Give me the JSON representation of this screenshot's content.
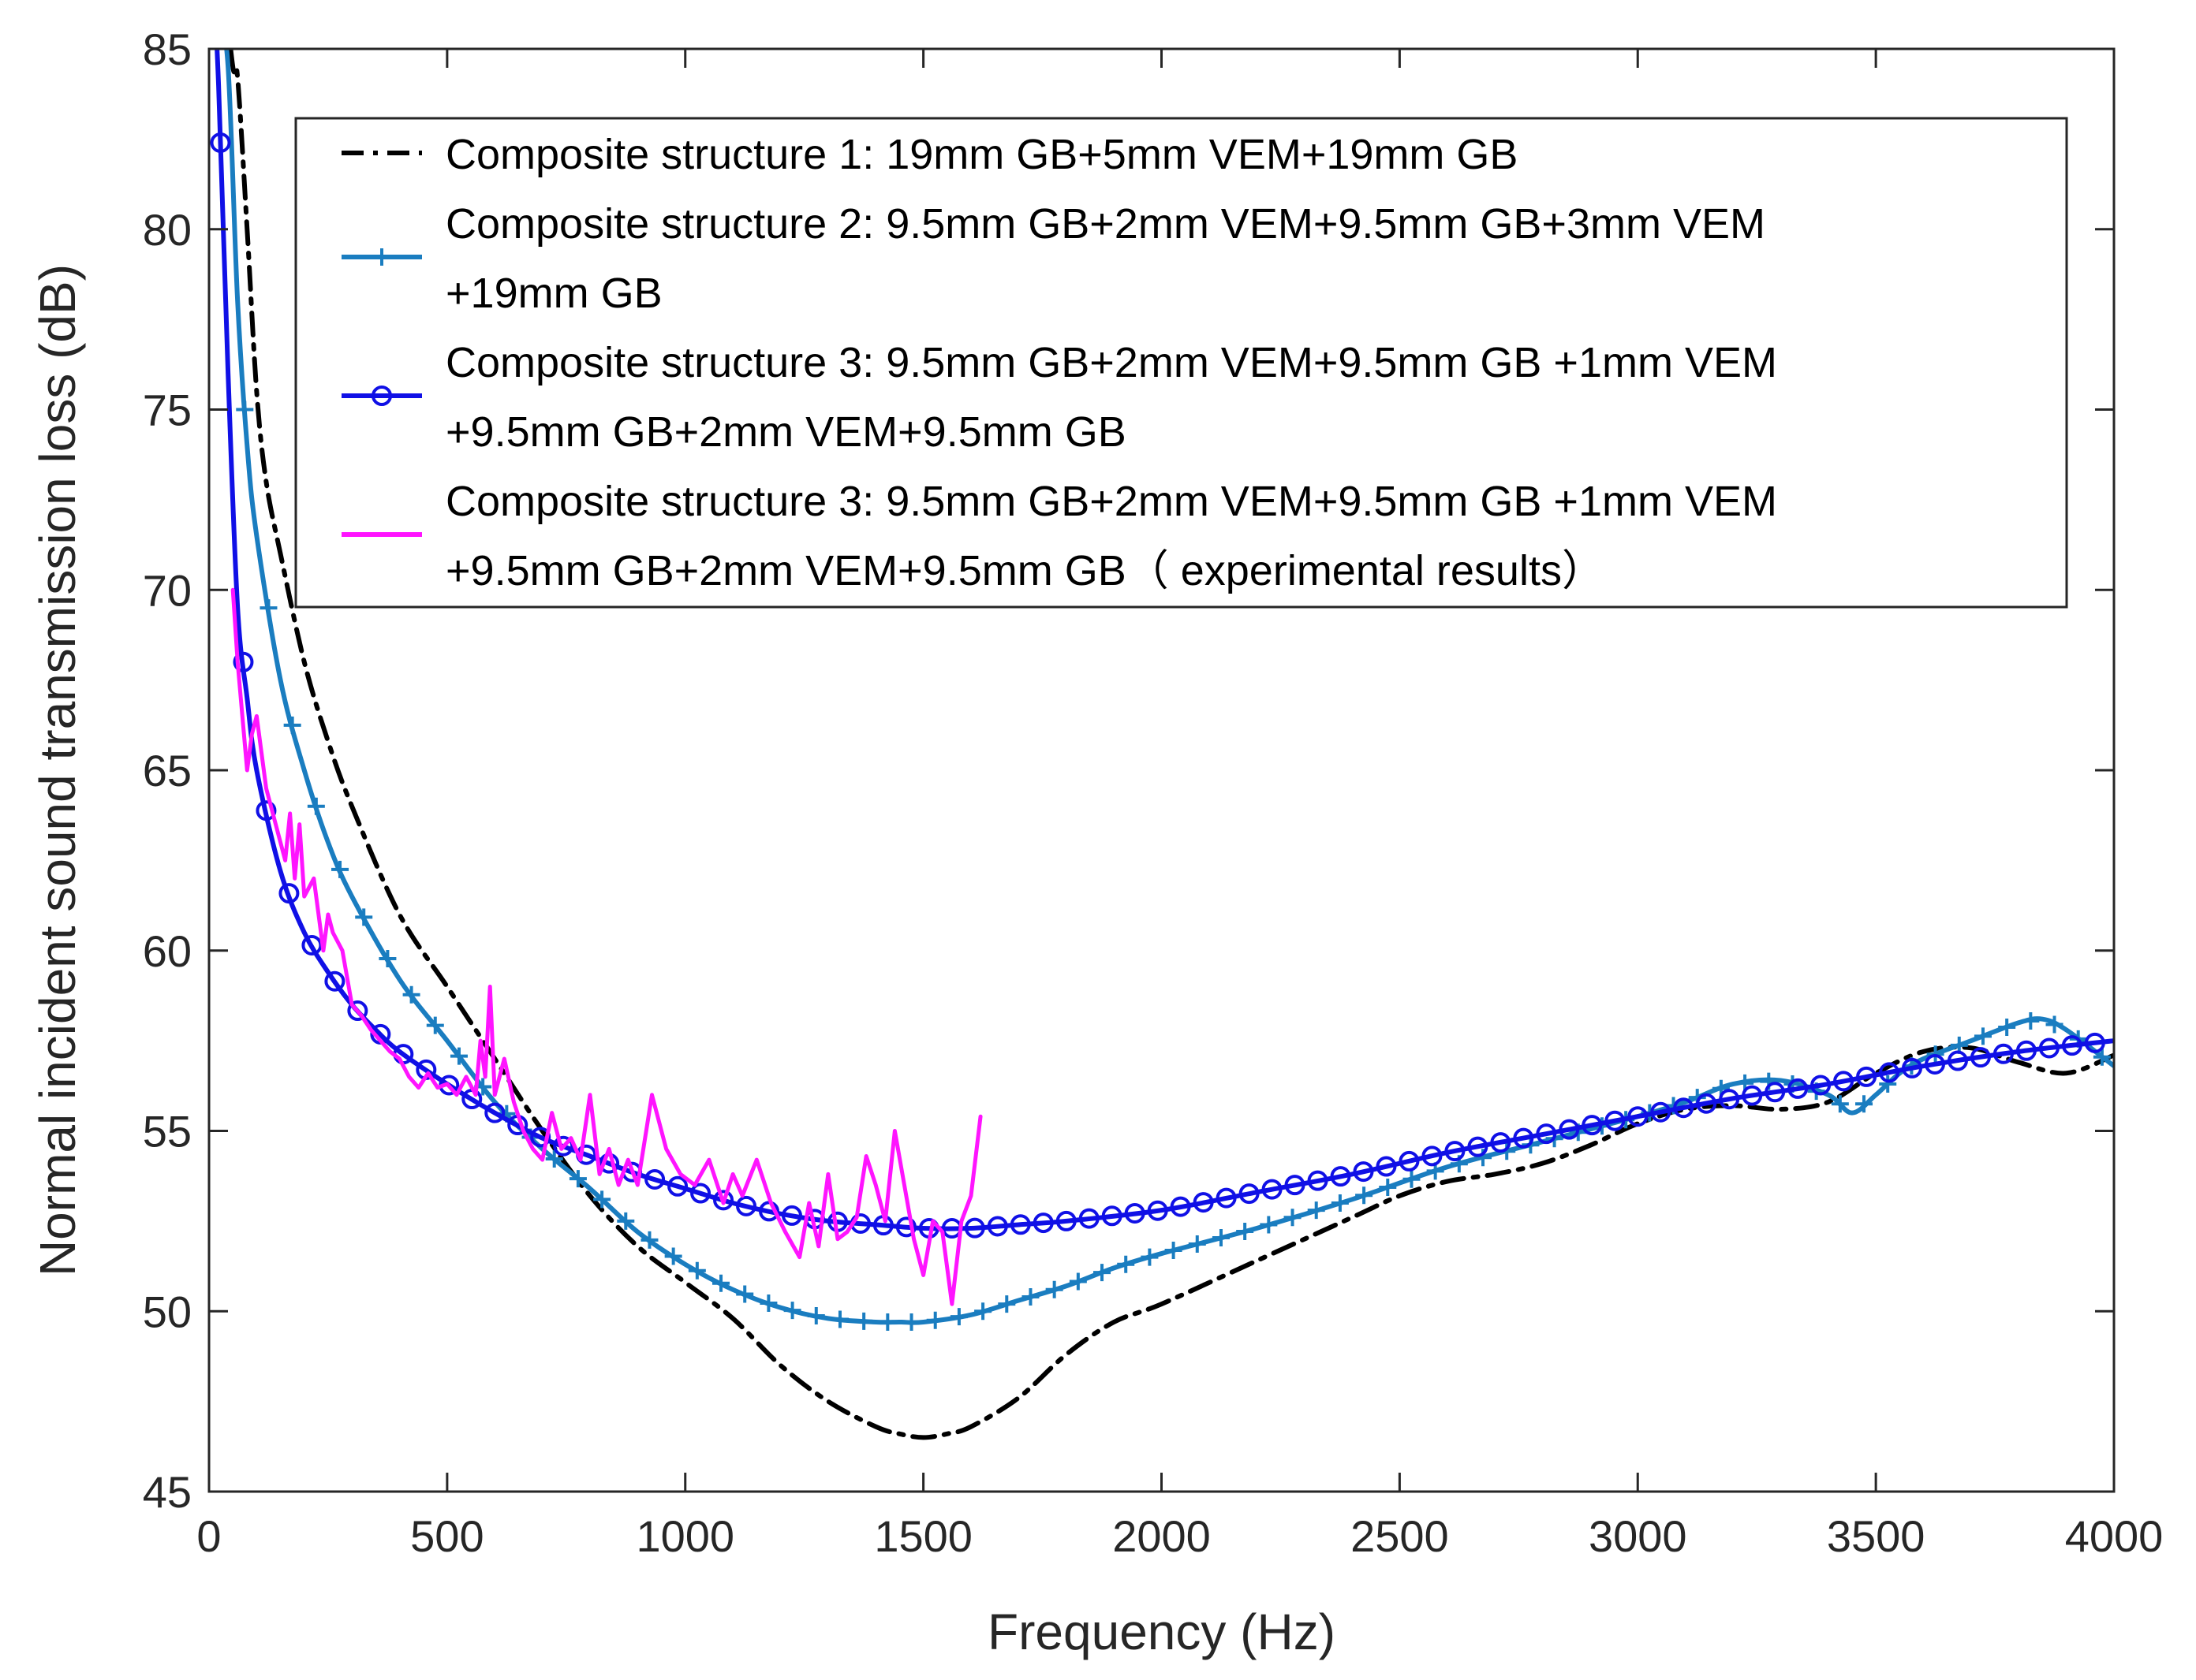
{
  "chart_data": {
    "type": "line",
    "title": "",
    "xlabel": "Frequency (Hz)",
    "ylabel": "Normal incident sound transmission loss (dB)",
    "xlim": [
      0,
      4000
    ],
    "ylim": [
      45,
      85
    ],
    "xticks": [
      0,
      500,
      1000,
      1500,
      2000,
      2500,
      3000,
      3500,
      4000
    ],
    "yticks": [
      45,
      50,
      55,
      60,
      65,
      70,
      75,
      80,
      85
    ],
    "grid": false,
    "legend_position": "top-right",
    "series": [
      {
        "name": "Composite structure 1: 19mm GB+5mm VEM+19mm GB",
        "color": "#000000",
        "line_style": "dash-dot",
        "marker": "none",
        "legend_lines": [
          "Composite structure 1: 19mm GB+5mm VEM+19mm GB"
        ],
        "x": [
          10,
          30,
          50,
          60,
          80,
          100,
          120,
          150,
          200,
          250,
          300,
          400,
          500,
          600,
          700,
          800,
          900,
          1000,
          1100,
          1200,
          1300,
          1400,
          1450,
          1500,
          1550,
          1600,
          1700,
          1800,
          1900,
          2000,
          2200,
          2400,
          2500,
          2600,
          2700,
          2800,
          2900,
          3000,
          3100,
          3200,
          3300,
          3400,
          3500,
          3600,
          3700,
          3800,
          3900,
          4000
        ],
        "y": [
          90,
          87,
          84.5,
          84.2,
          80,
          75.5,
          73,
          71,
          68,
          65.8,
          64,
          61,
          59,
          57,
          55,
          53.2,
          51.8,
          50.8,
          49.8,
          48.5,
          47.5,
          46.8,
          46.6,
          46.5,
          46.6,
          46.8,
          47.6,
          48.8,
          49.7,
          50.2,
          51.4,
          52.6,
          53.2,
          53.6,
          53.8,
          54.1,
          54.6,
          55.2,
          55.6,
          55.7,
          55.6,
          55.8,
          56.6,
          57.2,
          57.3,
          56.9,
          56.6,
          57.1
        ]
      },
      {
        "name": "Composite structure 2:  9.5mm GB+2mm VEM+9.5mm GB+3mm VEM +19mm GB",
        "color": "#1a7dc0",
        "line_style": "solid",
        "marker": "plus",
        "legend_lines": [
          "Composite structure 2:  9.5mm GB+2mm VEM+9.5mm GB+3mm VEM",
          "+19mm GB"
        ],
        "x": [
          5,
          20,
          40,
          60,
          80,
          100,
          150,
          200,
          250,
          300,
          400,
          500,
          600,
          700,
          800,
          900,
          1000,
          1100,
          1200,
          1300,
          1400,
          1450,
          1500,
          1600,
          1700,
          1800,
          1900,
          2000,
          2200,
          2400,
          2600,
          2800,
          3000,
          3100,
          3200,
          3300,
          3400,
          3450,
          3500,
          3550,
          3600,
          3700,
          3800,
          3850,
          3900,
          4000
        ],
        "y": [
          88,
          86,
          84.5,
          78,
          74,
          71.5,
          67.5,
          65,
          63,
          61.5,
          59.2,
          57.5,
          55.8,
          54.5,
          53.4,
          52.2,
          51.3,
          50.6,
          50.1,
          49.8,
          49.7,
          49.7,
          49.7,
          49.9,
          50.3,
          50.7,
          51.2,
          51.6,
          52.3,
          53.1,
          54.0,
          54.7,
          55.4,
          55.8,
          56.3,
          56.4,
          56.0,
          55.5,
          56.0,
          56.6,
          57.0,
          57.5,
          58.0,
          58.1,
          57.8,
          56.8
        ]
      },
      {
        "name": "Composite structure 3: 9.5mm GB+2mm VEM+9.5mm GB +1mm VEM +9.5mm GB+2mm VEM+9.5mm GB",
        "color": "#1010e6",
        "line_style": "solid",
        "marker": "circle",
        "legend_lines": [
          "Composite structure 3: 9.5mm GB+2mm VEM+9.5mm GB +1mm VEM",
          "+9.5mm GB+2mm VEM+9.5mm GB"
        ],
        "x": [
          5,
          20,
          40,
          60,
          80,
          100,
          150,
          200,
          250,
          300,
          350,
          400,
          500,
          600,
          700,
          800,
          900,
          1000,
          1100,
          1200,
          1300,
          1400,
          1500,
          1600,
          1700,
          1800,
          2000,
          2200,
          2400,
          2600,
          2800,
          3000,
          3200,
          3400,
          3600,
          3800,
          4000
        ],
        "y": [
          88,
          84,
          76,
          69.5,
          67,
          65,
          62.2,
          60.5,
          59.4,
          58.5,
          57.8,
          57.2,
          56.3,
          55.5,
          54.8,
          54.3,
          53.8,
          53.4,
          53.0,
          52.7,
          52.5,
          52.4,
          52.3,
          52.3,
          52.4,
          52.5,
          52.8,
          53.3,
          53.8,
          54.4,
          54.9,
          55.4,
          55.9,
          56.3,
          56.8,
          57.2,
          57.5
        ]
      },
      {
        "name": "Composite structure 3: 9.5mm GB+2mm VEM+9.5mm GB +1mm VEM +9.5mm GB+2mm VEM+9.5mm GB（ experimental results）",
        "color": "#ff14ff",
        "line_style": "solid",
        "marker": "none",
        "legend_lines": [
          "Composite structure 3: 9.5mm GB+2mm VEM+9.5mm GB +1mm VEM",
          "+9.5mm GB+2mm VEM+9.5mm GB（ experimental results）"
        ],
        "x": [
          50,
          60,
          70,
          80,
          90,
          100,
          110,
          120,
          140,
          160,
          170,
          180,
          190,
          200,
          220,
          240,
          250,
          260,
          280,
          300,
          320,
          340,
          360,
          380,
          400,
          420,
          440,
          460,
          480,
          500,
          520,
          540,
          560,
          570,
          580,
          590,
          600,
          620,
          640,
          660,
          680,
          700,
          720,
          740,
          760,
          780,
          800,
          820,
          840,
          860,
          880,
          900,
          930,
          960,
          990,
          1020,
          1050,
          1080,
          1100,
          1120,
          1150,
          1180,
          1210,
          1240,
          1260,
          1280,
          1300,
          1320,
          1340,
          1360,
          1380,
          1400,
          1420,
          1440,
          1460,
          1480,
          1500,
          1520,
          1540,
          1560,
          1580,
          1600,
          1620
        ],
        "y": [
          70,
          68,
          66.5,
          65,
          66,
          66.5,
          65.5,
          64.5,
          63.5,
          62.5,
          63.8,
          62,
          63.5,
          61.5,
          62,
          60,
          61,
          60.5,
          60,
          58.5,
          58.2,
          57.8,
          57.5,
          57.2,
          57,
          56.5,
          56.2,
          56.6,
          56.2,
          56.3,
          56,
          56.5,
          56,
          57.5,
          56.5,
          59,
          56,
          57,
          55.8,
          55,
          54.5,
          54.2,
          55.5,
          54.5,
          54.8,
          54.2,
          56,
          53.8,
          54.5,
          53.5,
          54.2,
          53.5,
          56,
          54.5,
          53.8,
          53.5,
          54.2,
          53,
          53.8,
          53.2,
          54.2,
          53,
          52.2,
          51.5,
          53,
          51.8,
          53.8,
          52,
          52.2,
          52.6,
          54.3,
          53.5,
          52.5,
          55,
          53.5,
          52,
          51,
          52.5,
          52.2,
          50.2,
          52.5,
          53.2,
          55.4
        ]
      }
    ]
  }
}
